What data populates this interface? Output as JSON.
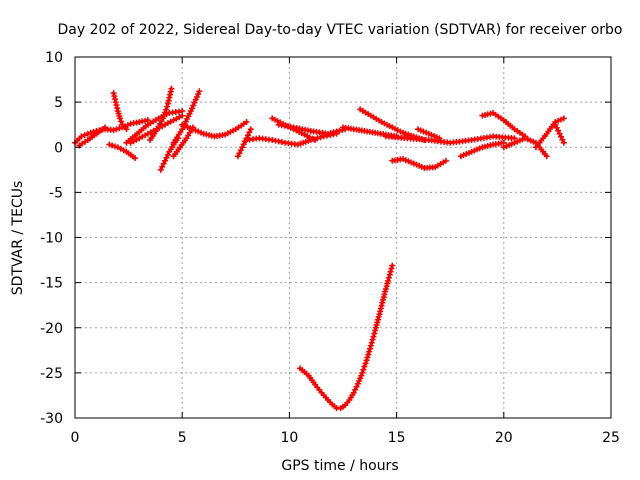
{
  "chart_data": {
    "type": "scatter",
    "title": "Day 202 of 2022, Sidereal Day-to-day VTEC variation (SDTVAR) for receiver orbo",
    "xlabel": "GPS time / hours",
    "ylabel": "SDTVAR / TECUs",
    "xlim": [
      0,
      25
    ],
    "ylim": [
      -30,
      10
    ],
    "xticks": [
      0,
      5,
      10,
      15,
      20,
      25
    ],
    "yticks": [
      -30,
      -25,
      -20,
      -15,
      -10,
      -5,
      0,
      5,
      10
    ],
    "grid": true,
    "legend": "none",
    "series_color": "#ff0000",
    "series": [
      {
        "name": "t1",
        "x": [
          0.0,
          0.3,
          0.6,
          1.0,
          1.4,
          1.8,
          2.2,
          2.6,
          3.0,
          3.4
        ],
        "y": [
          0.5,
          1.2,
          1.5,
          1.8,
          2.0,
          1.9,
          2.2,
          2.6,
          2.8,
          3.0
        ]
      },
      {
        "name": "t2",
        "x": [
          0.2,
          0.6,
          1.0,
          1.4
        ],
        "y": [
          0.2,
          0.8,
          1.5,
          2.2
        ]
      },
      {
        "name": "t3",
        "x": [
          1.8,
          1.9,
          2.0,
          2.1,
          2.2,
          2.4
        ],
        "y": [
          6.0,
          5.0,
          4.0,
          3.2,
          2.5,
          2.0
        ]
      },
      {
        "name": "t4",
        "x": [
          1.6,
          2.0,
          2.4,
          2.8
        ],
        "y": [
          0.3,
          0.0,
          -0.5,
          -1.2
        ]
      },
      {
        "name": "t5",
        "x": [
          2.4,
          2.9,
          3.4,
          3.9,
          4.4,
          5.0
        ],
        "y": [
          0.5,
          1.5,
          2.5,
          3.2,
          3.8,
          4.0
        ]
      },
      {
        "name": "t6",
        "x": [
          3.5,
          3.7,
          3.9,
          4.1,
          4.3,
          4.5
        ],
        "y": [
          0.8,
          1.5,
          2.3,
          3.2,
          4.5,
          6.5
        ]
      },
      {
        "name": "t7",
        "x": [
          2.6,
          3.0,
          3.4,
          3.8,
          4.2,
          4.6,
          5.0
        ],
        "y": [
          0.5,
          1.0,
          1.5,
          2.0,
          2.5,
          3.0,
          3.5
        ]
      },
      {
        "name": "t8",
        "x": [
          4.0,
          4.2,
          4.4,
          4.6,
          4.8
        ],
        "y": [
          -2.5,
          -1.5,
          -0.5,
          0.3,
          1.0
        ]
      },
      {
        "name": "t9",
        "x": [
          4.6,
          5.0,
          5.4,
          5.8
        ],
        "y": [
          0.5,
          2.0,
          4.0,
          6.2
        ]
      },
      {
        "name": "t10",
        "x": [
          4.6,
          4.9,
          5.2,
          5.5
        ],
        "y": [
          -1.0,
          0.0,
          1.0,
          2.2
        ]
      },
      {
        "name": "t11",
        "x": [
          5.0,
          5.5,
          6.0,
          6.5,
          7.0,
          7.5,
          8.0
        ],
        "y": [
          2.5,
          2.0,
          1.5,
          1.2,
          1.4,
          2.0,
          2.8
        ]
      },
      {
        "name": "t12",
        "x": [
          7.6,
          7.8,
          8.0,
          8.2
        ],
        "y": [
          -1.0,
          0.0,
          1.0,
          2.0
        ]
      },
      {
        "name": "t13",
        "x": [
          8.0,
          8.6,
          9.2,
          9.8,
          10.4,
          11.0,
          11.6,
          12.2
        ],
        "y": [
          0.8,
          1.0,
          0.8,
          0.5,
          0.3,
          0.8,
          1.2,
          1.5
        ]
      },
      {
        "name": "t14",
        "x": [
          9.5,
          10.2,
          11.0,
          11.8,
          12.6
        ],
        "y": [
          2.5,
          2.2,
          1.8,
          1.5,
          2.0
        ]
      },
      {
        "name": "t15",
        "x": [
          9.2,
          9.7,
          10.2,
          10.7,
          11.2
        ],
        "y": [
          3.2,
          2.6,
          2.0,
          1.4,
          0.8
        ]
      },
      {
        "name": "t16",
        "x": [
          12.5,
          13.0,
          13.5,
          14.0,
          14.5,
          15.0
        ],
        "y": [
          2.2,
          2.0,
          1.8,
          1.6,
          1.4,
          1.2
        ]
      },
      {
        "name": "t17",
        "x": [
          13.3,
          13.8,
          14.3,
          14.8,
          15.3,
          15.8,
          16.3
        ],
        "y": [
          4.2,
          3.5,
          2.8,
          2.2,
          1.6,
          1.2,
          0.8
        ]
      },
      {
        "name": "t18",
        "x": [
          14.5,
          15.5,
          16.5,
          17.5,
          18.5,
          19.5,
          20.5
        ],
        "y": [
          1.2,
          1.0,
          0.8,
          0.5,
          0.8,
          1.2,
          1.0
        ]
      },
      {
        "name": "t19",
        "x": [
          14.8,
          15.3,
          15.8,
          16.3,
          16.8,
          17.3
        ],
        "y": [
          -1.5,
          -1.3,
          -1.8,
          -2.3,
          -2.2,
          -1.5
        ]
      },
      {
        "name": "t20",
        "x": [
          16.0,
          16.5,
          17.0
        ],
        "y": [
          2.0,
          1.5,
          1.0
        ]
      },
      {
        "name": "t21",
        "x": [
          18.0,
          18.5,
          19.0,
          19.5,
          20.0
        ],
        "y": [
          -1.0,
          -0.5,
          0.0,
          0.3,
          0.5
        ]
      },
      {
        "name": "t22",
        "x": [
          19.0,
          19.5,
          20.0,
          20.5,
          21.0
        ],
        "y": [
          3.5,
          3.8,
          3.0,
          2.0,
          1.2
        ]
      },
      {
        "name": "t23",
        "x": [
          20.0,
          20.5,
          21.0,
          21.5,
          22.0
        ],
        "y": [
          0.0,
          0.5,
          1.0,
          0.5,
          -1.0
        ]
      },
      {
        "name": "t24",
        "x": [
          21.5,
          22.0,
          22.4,
          22.8
        ],
        "y": [
          0.0,
          1.5,
          2.8,
          3.2
        ]
      },
      {
        "name": "t25",
        "x": [
          22.4,
          22.6,
          22.8
        ],
        "y": [
          2.5,
          1.5,
          0.5
        ]
      },
      {
        "name": "t26",
        "x": [
          10.5,
          10.9,
          11.2,
          11.5,
          11.8,
          12.0,
          12.2,
          12.4,
          12.6,
          12.8,
          13.0,
          13.2,
          13.4,
          13.6,
          13.8,
          14.0,
          14.2,
          14.4,
          14.6,
          14.8
        ],
        "y": [
          -24.5,
          -25.3,
          -26.3,
          -27.2,
          -28.0,
          -28.5,
          -28.9,
          -28.9,
          -28.6,
          -28.0,
          -27.2,
          -26.2,
          -25.0,
          -23.6,
          -22.0,
          -20.3,
          -18.5,
          -16.6,
          -14.8,
          -13.1
        ]
      }
    ]
  }
}
